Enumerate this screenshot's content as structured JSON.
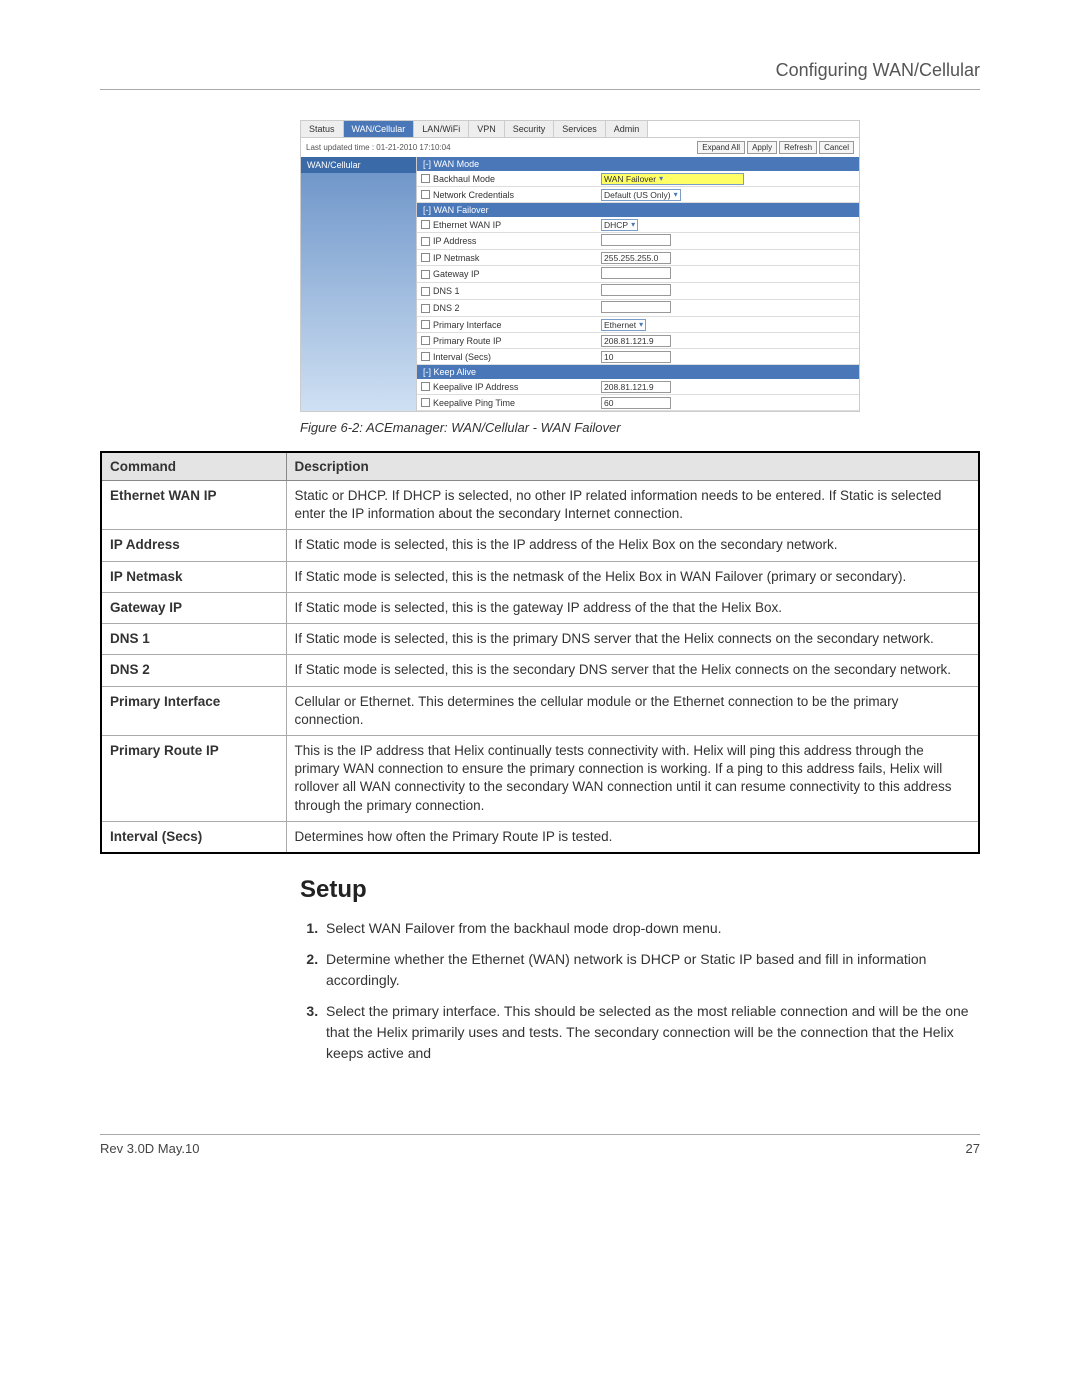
{
  "header": {
    "title": "Configuring WAN/Cellular"
  },
  "screenshot": {
    "tabs": [
      "Status",
      "WAN/Cellular",
      "LAN/WiFi",
      "VPN",
      "Security",
      "Services",
      "Admin"
    ],
    "active_tab": "WAN/Cellular",
    "timestamp": "Last updated time : 01-21-2010 17:10:04",
    "buttons": [
      "Expand All",
      "Apply",
      "Refresh",
      "Cancel"
    ],
    "sidebar": {
      "item": "WAN/Cellular"
    },
    "sections": [
      {
        "title": "[-] WAN Mode",
        "rows": [
          {
            "label": "Backhaul Mode",
            "value": "WAN Failover",
            "control": "select",
            "highlight": true
          },
          {
            "label": "Network Credentials",
            "value": "Default (US Only)",
            "control": "select"
          }
        ]
      },
      {
        "title": "[-] WAN Failover",
        "rows": [
          {
            "label": "Ethernet WAN IP",
            "value": "DHCP",
            "control": "select"
          },
          {
            "label": "IP Address",
            "value": "",
            "control": "input"
          },
          {
            "label": "IP Netmask",
            "value": "255.255.255.0",
            "control": "input"
          },
          {
            "label": "Gateway IP",
            "value": "",
            "control": "input"
          },
          {
            "label": "DNS 1",
            "value": "",
            "control": "input"
          },
          {
            "label": "DNS 2",
            "value": "",
            "control": "input"
          },
          {
            "label": "Primary Interface",
            "value": "Ethernet",
            "control": "select"
          },
          {
            "label": "Primary Route IP",
            "value": "208.81.121.9",
            "control": "input"
          },
          {
            "label": "Interval (Secs)",
            "value": "10",
            "control": "input"
          }
        ]
      },
      {
        "title": "[-] Keep Alive",
        "rows": [
          {
            "label": "Keepalive IP Address",
            "value": "208.81.121.9",
            "control": "input"
          },
          {
            "label": "Keepalive Ping Time",
            "value": "60",
            "control": "input"
          }
        ]
      }
    ]
  },
  "caption": "Figure 6-2: ACEmanager: WAN/Cellular - WAN Failover",
  "table": {
    "headers": [
      "Command",
      "Description"
    ],
    "rows": [
      {
        "cmd": "Ethernet WAN IP",
        "desc": "Static or DHCP. If DHCP is selected, no other IP related information needs to be entered. If Static is selected enter the IP information about the secondary Internet connection."
      },
      {
        "cmd": "IP Address",
        "desc": "If Static mode is selected, this is the IP address of the Helix Box on the secondary network."
      },
      {
        "cmd": "IP Netmask",
        "desc": "If Static mode is selected, this is the netmask of the Helix Box in WAN Failover (primary or secondary)."
      },
      {
        "cmd": "Gateway IP",
        "desc": "If Static mode is selected, this is the gateway IP address of  the that the Helix Box."
      },
      {
        "cmd": "DNS 1",
        "desc": "If Static mode is selected, this is the primary DNS server that the Helix connects on the secondary network."
      },
      {
        "cmd": "DNS 2",
        "desc": "If Static mode is selected, this is the secondary DNS server that the Helix connects on the secondary network."
      },
      {
        "cmd": "Primary Interface",
        "desc": "Cellular or Ethernet. This determines the cellular module or the Ethernet connection to be the primary connection."
      },
      {
        "cmd": "Primary Route IP",
        "desc": "This is the IP address that Helix continually tests connectivity with. Helix will ping this address through the primary WAN connection to ensure the primary connection is working. If a ping to this address fails, Helix will rollover all WAN connectivity to the secondary WAN connection until it can resume connectivity to this address through the primary connection."
      },
      {
        "cmd": "Interval (Secs)",
        "desc": "Determines how often the Primary Route IP is tested."
      }
    ]
  },
  "setup": {
    "heading": "Setup",
    "steps": [
      "Select WAN Failover from the backhaul mode drop-down menu.",
      "Determine whether the Ethernet (WAN) network is DHCP or Static IP based and fill in information accordingly.",
      "Select the primary interface. This should be selected as the most reliable connection and will be the one that the Helix primarily uses and tests. The secondary connection will be the connection that the Helix keeps active and"
    ]
  },
  "footer": {
    "rev": "Rev 3.0D  May.10",
    "page": "27"
  },
  "colors": {
    "tab_active_bg": "#4a77b8",
    "section_hdr_bg": "#4a77b8",
    "highlight_bg": "#ffff66",
    "table_header_bg": "#e4e4e4",
    "sidebar_grad_top": "#6a92c7",
    "sidebar_grad_bot": "#cfe0f3"
  }
}
